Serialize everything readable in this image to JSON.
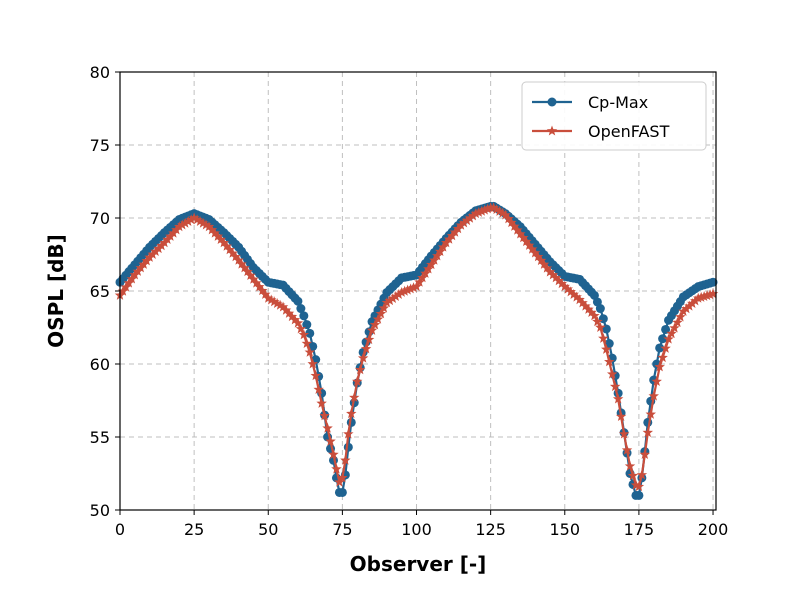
{
  "chart_data": {
    "type": "line",
    "title": "",
    "xlabel": "Observer [-]",
    "ylabel": "OSPL [dB]",
    "xlim": [
      0,
      201
    ],
    "ylim": [
      50,
      80
    ],
    "xticks": [
      0,
      25,
      50,
      75,
      100,
      125,
      150,
      175,
      200
    ],
    "yticks": [
      50,
      55,
      60,
      65,
      70,
      75,
      80
    ],
    "grid": true,
    "legend_position": "upper-right",
    "series": [
      {
        "name": "Cp-Max",
        "color": "#1f6391",
        "marker": "circle",
        "x": [
          0,
          5,
          10,
          15,
          20,
          25,
          30,
          35,
          40,
          45,
          50,
          55,
          60,
          62,
          64,
          66,
          68,
          70,
          72,
          73,
          74,
          75,
          76,
          77,
          78,
          80,
          82,
          85,
          90,
          95,
          100,
          105,
          110,
          115,
          120,
          125,
          126,
          130,
          135,
          140,
          145,
          150,
          155,
          160,
          162,
          164,
          166,
          168,
          170,
          172,
          174,
          175,
          176,
          177,
          178,
          180,
          182,
          185,
          190,
          195,
          200
        ],
        "y": [
          65.6,
          66.8,
          68.0,
          69.0,
          69.9,
          70.3,
          69.9,
          69.0,
          68.0,
          66.6,
          65.6,
          65.4,
          64.3,
          63.3,
          62.1,
          60.3,
          58.0,
          55.0,
          53.4,
          52.2,
          51.2,
          51.2,
          52.4,
          54.3,
          56.0,
          58.7,
          60.8,
          62.9,
          64.9,
          65.9,
          66.1,
          67.4,
          68.6,
          69.7,
          70.5,
          70.8,
          70.8,
          70.3,
          69.4,
          68.2,
          67.0,
          66.0,
          65.8,
          64.7,
          63.8,
          62.4,
          60.4,
          58.0,
          55.3,
          52.5,
          51.0,
          51.0,
          52.2,
          54.0,
          56.0,
          58.9,
          61.1,
          63.0,
          64.6,
          65.3,
          65.6
        ]
      },
      {
        "name": "OpenFAST",
        "color": "#c94e3c",
        "marker": "star",
        "x": [
          0,
          5,
          10,
          15,
          20,
          25,
          30,
          35,
          40,
          45,
          50,
          55,
          60,
          62,
          64,
          66,
          68,
          70,
          72,
          73,
          74,
          75,
          76,
          77,
          78,
          80,
          82,
          85,
          90,
          95,
          100,
          105,
          110,
          115,
          120,
          125,
          126,
          130,
          135,
          140,
          145,
          150,
          155,
          160,
          162,
          164,
          166,
          168,
          170,
          172,
          174,
          175,
          176,
          177,
          178,
          180,
          182,
          185,
          190,
          195,
          200
        ],
        "y": [
          64.7,
          66.1,
          67.3,
          68.3,
          69.4,
          70.0,
          69.4,
          68.3,
          67.1,
          65.8,
          64.5,
          63.9,
          62.8,
          62.0,
          60.8,
          59.2,
          57.3,
          55.6,
          53.8,
          52.8,
          51.9,
          52.2,
          53.4,
          55.2,
          56.6,
          58.8,
          60.4,
          62.3,
          64.2,
          64.9,
          65.3,
          66.8,
          68.3,
          69.5,
          70.3,
          70.7,
          70.7,
          70.2,
          68.9,
          67.6,
          66.3,
          65.3,
          64.4,
          63.3,
          62.5,
          61.0,
          59.3,
          57.6,
          55.2,
          53.0,
          51.7,
          51.6,
          52.4,
          53.8,
          55.3,
          57.8,
          59.8,
          61.7,
          63.6,
          64.5,
          64.8
        ]
      }
    ]
  }
}
